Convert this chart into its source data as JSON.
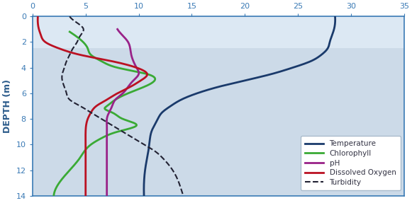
{
  "ylabel": "DEPTH (m)",
  "xlim": [
    0,
    35
  ],
  "ylim": [
    14,
    0
  ],
  "xticks": [
    0,
    5,
    10,
    15,
    20,
    25,
    30,
    35
  ],
  "yticks": [
    0,
    2,
    4,
    6,
    8,
    10,
    12,
    14
  ],
  "bg_light": "#dce8f3",
  "bg_dark": "#bfcfdf",
  "band_boundary": 2.5,
  "colors": {
    "temperature": "#1a3a6b",
    "chlorophyll": "#3aaa35",
    "ph": "#992288",
    "dissolved_oxygen": "#bb1122",
    "turbidity": "#222233"
  },
  "temperature": {
    "depth": [
      0.0,
      0.5,
      1.0,
      1.5,
      2.0,
      2.5,
      3.0,
      3.5,
      4.0,
      4.5,
      5.0,
      5.5,
      6.0,
      6.5,
      7.0,
      7.5,
      8.0,
      9.0,
      10.0,
      11.0,
      12.0,
      13.0,
      14.0
    ],
    "value": [
      28.5,
      28.5,
      28.4,
      28.2,
      28.0,
      27.8,
      27.2,
      26.2,
      24.5,
      22.5,
      20.0,
      17.5,
      15.5,
      14.0,
      13.0,
      12.2,
      11.8,
      11.2,
      11.0,
      10.8,
      10.6,
      10.5,
      10.5
    ]
  },
  "chlorophyll": {
    "depth": [
      1.2,
      1.8,
      2.5,
      3.0,
      3.5,
      4.0,
      4.5,
      5.0,
      5.5,
      6.0,
      6.5,
      7.0,
      7.2,
      7.5,
      8.0,
      8.5,
      9.0,
      9.5,
      10.0,
      11.0,
      12.0,
      13.0,
      14.0
    ],
    "value": [
      3.5,
      4.5,
      5.2,
      5.5,
      6.5,
      8.0,
      10.8,
      11.5,
      10.5,
      9.0,
      7.8,
      7.0,
      6.8,
      7.5,
      8.5,
      9.8,
      8.0,
      6.5,
      5.5,
      4.5,
      3.5,
      2.5,
      2.0
    ]
  },
  "ph": {
    "depth": [
      1.0,
      1.5,
      2.0,
      2.5,
      3.0,
      3.5,
      4.0,
      4.5,
      5.0,
      5.5,
      6.0,
      6.5,
      7.0,
      7.5,
      8.0,
      8.5,
      9.0,
      10.0,
      11.0,
      12.0,
      13.0,
      14.0
    ],
    "value": [
      8.0,
      8.5,
      9.0,
      9.2,
      9.3,
      9.5,
      9.8,
      10.0,
      9.5,
      9.0,
      8.5,
      7.8,
      7.5,
      7.2,
      7.0,
      7.0,
      7.0,
      7.0,
      7.0,
      7.0,
      7.0,
      7.0
    ]
  },
  "dissolved_oxygen": {
    "depth": [
      0.0,
      0.5,
      1.0,
      1.5,
      2.0,
      2.5,
      3.0,
      3.5,
      4.0,
      4.5,
      5.0,
      5.5,
      6.0,
      6.5,
      7.0,
      7.5,
      8.0,
      9.0,
      10.0,
      11.0,
      12.0,
      13.0,
      14.0
    ],
    "value": [
      0.5,
      0.5,
      0.6,
      0.8,
      1.2,
      2.5,
      4.5,
      7.5,
      9.8,
      10.8,
      10.2,
      9.2,
      8.0,
      7.0,
      6.0,
      5.5,
      5.2,
      5.0,
      5.0,
      5.0,
      5.0,
      5.0,
      5.0
    ]
  },
  "turbidity": {
    "depth": [
      0.0,
      0.5,
      1.0,
      1.5,
      2.0,
      2.5,
      3.0,
      3.5,
      4.0,
      4.5,
      5.0,
      5.5,
      6.0,
      6.5,
      7.0,
      7.5,
      8.0,
      8.5,
      9.0,
      9.5,
      10.0,
      10.5,
      11.0,
      12.0,
      13.0,
      14.0
    ],
    "value": [
      3.5,
      4.2,
      4.8,
      4.5,
      4.2,
      3.8,
      3.5,
      3.2,
      3.0,
      2.8,
      2.8,
      3.0,
      3.2,
      3.5,
      4.5,
      5.5,
      6.5,
      7.5,
      8.5,
      9.5,
      10.5,
      11.5,
      12.2,
      13.2,
      13.8,
      14.2
    ]
  },
  "legend_entries": [
    "Temperature",
    "Chlorophyll",
    "pH",
    "Dissolved Oxygen",
    "Turbidity"
  ],
  "axis_color": "#3a7ab5",
  "tick_color": "#3a7ab5",
  "ylabel_color": "#2a5a8a"
}
